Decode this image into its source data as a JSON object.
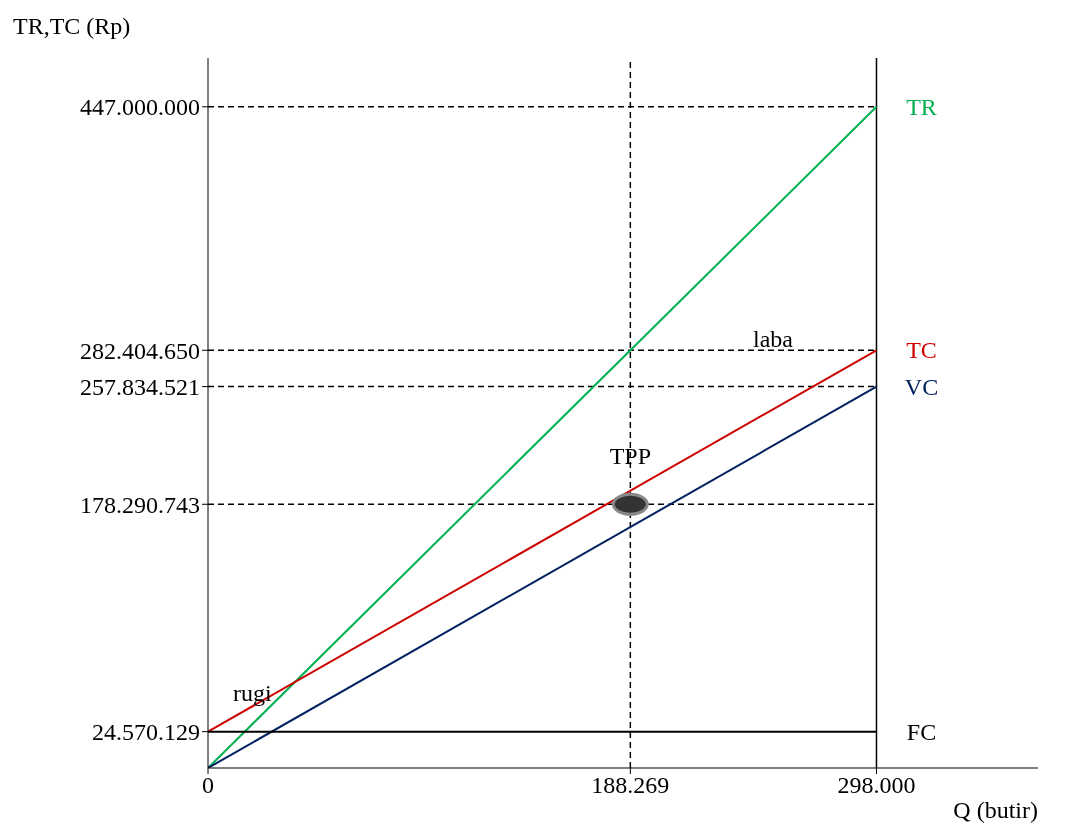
{
  "chart_data": {
    "type": "line",
    "xlabel": "Q (butir)",
    "ylabel": "TR,TC (Rp)",
    "xlim": [
      0,
      370000
    ],
    "ylim": [
      0,
      480000000
    ],
    "xticks": [
      0,
      {
        "value": 188269,
        "label": "188.269"
      },
      {
        "value": 298000,
        "label": "298.000"
      }
    ],
    "yticks": [
      {
        "value": 24570129,
        "label": "24.570.129"
      },
      {
        "value": 178290743,
        "label": "178.290.743"
      },
      {
        "value": 257834521,
        "label": "257.834.521"
      },
      {
        "value": 282404650,
        "label": "282.404.650"
      },
      {
        "value": 447000000,
        "label": "447.000.000"
      }
    ],
    "series": [
      {
        "name": "TR",
        "color": "#00b050",
        "x": [
          0,
          298000
        ],
        "values": [
          0,
          447000000
        ]
      },
      {
        "name": "TC",
        "color": "#cc0000",
        "x": [
          0,
          298000
        ],
        "values": [
          24570129,
          282404650
        ]
      },
      {
        "name": "VC",
        "color": "#002060",
        "x": [
          0,
          298000
        ],
        "values": [
          0,
          257834521
        ]
      },
      {
        "name": "FC",
        "color": "#000000",
        "x": [
          0,
          298000
        ],
        "values": [
          24570129,
          24570129
        ]
      },
      {
        "type": "scatter",
        "color": "#333333",
        "marker": "circle",
        "x": [
          188269
        ],
        "values": [
          178290743
        ]
      }
    ],
    "ref_lines": [
      {
        "axis": "y",
        "value": 447000000,
        "line_style": "dashed",
        "color": "#000000"
      },
      {
        "axis": "y",
        "value": 282404650,
        "line_style": "dashed",
        "color": "#000000"
      },
      {
        "axis": "y",
        "value": 257834521,
        "line_style": "dashed",
        "color": "#000000"
      },
      {
        "axis": "y",
        "value": 178290743,
        "line_style": "dashed",
        "color": "#000000"
      },
      {
        "axis": "x",
        "value": 188269,
        "line_style": "dashed",
        "color": "#000000"
      },
      {
        "axis": "x",
        "value": 298000,
        "line_style": "solid",
        "color": "#000000"
      }
    ],
    "annotations": [
      {
        "text": "TPP",
        "x": 188269,
        "y": 178290743
      },
      "rugi",
      "laba"
    ],
    "grid": false,
    "legend": false,
    "line_style": "solid"
  }
}
